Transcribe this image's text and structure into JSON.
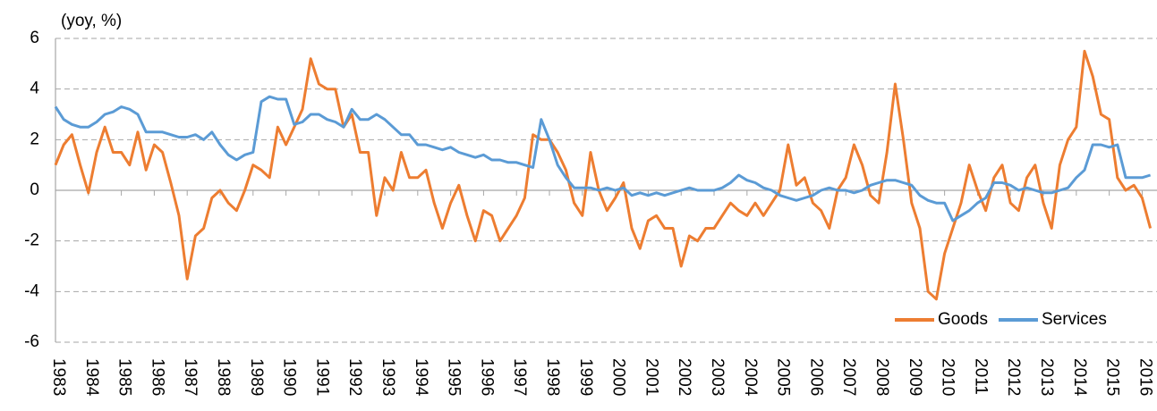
{
  "chart_data": {
    "type": "line",
    "y_label": "(yoy, %)",
    "x": [
      1983,
      1983.25,
      1983.5,
      1983.75,
      1984,
      1984.25,
      1984.5,
      1984.75,
      1985,
      1985.25,
      1985.5,
      1985.75,
      1986,
      1986.25,
      1986.5,
      1986.75,
      1987,
      1987.25,
      1987.5,
      1987.75,
      1988,
      1988.25,
      1988.5,
      1988.75,
      1989,
      1989.25,
      1989.5,
      1989.75,
      1990,
      1990.25,
      1990.5,
      1990.75,
      1991,
      1991.25,
      1991.5,
      1991.75,
      1992,
      1992.25,
      1992.5,
      1992.75,
      1993,
      1993.25,
      1993.5,
      1993.75,
      1994,
      1994.25,
      1994.5,
      1994.75,
      1995,
      1995.25,
      1995.5,
      1995.75,
      1996,
      1996.25,
      1996.5,
      1996.75,
      1997,
      1997.25,
      1997.5,
      1997.75,
      1998,
      1998.25,
      1998.5,
      1998.75,
      1999,
      1999.25,
      1999.5,
      1999.75,
      2000,
      2000.25,
      2000.5,
      2000.75,
      2001,
      2001.25,
      2001.5,
      2001.75,
      2002,
      2002.25,
      2002.5,
      2002.75,
      2003,
      2003.25,
      2003.5,
      2003.75,
      2004,
      2004.25,
      2004.5,
      2004.75,
      2005,
      2005.25,
      2005.5,
      2005.75,
      2006,
      2006.25,
      2006.5,
      2006.75,
      2007,
      2007.25,
      2007.5,
      2007.75,
      2008,
      2008.25,
      2008.5,
      2008.75,
      2009,
      2009.25,
      2009.5,
      2009.75,
      2010,
      2010.25,
      2010.5,
      2010.75,
      2011,
      2011.25,
      2011.5,
      2011.75,
      2012,
      2012.25,
      2012.5,
      2012.75,
      2013,
      2013.25,
      2013.5,
      2013.75,
      2014,
      2014.25,
      2014.5,
      2014.75,
      2015,
      2015.25,
      2015.5,
      2015.75,
      2016,
      2016.25
    ],
    "series": [
      {
        "name": "Goods",
        "color": "#ed7d31",
        "values": [
          1.0,
          1.8,
          2.2,
          1.0,
          -0.1,
          1.5,
          2.5,
          1.5,
          1.5,
          1.0,
          2.3,
          0.8,
          1.8,
          1.5,
          0.3,
          -1.0,
          -3.5,
          -1.8,
          -1.5,
          -0.3,
          0.0,
          -0.5,
          -0.8,
          0.0,
          1.0,
          0.8,
          0.5,
          2.5,
          1.8,
          2.5,
          3.2,
          5.2,
          4.2,
          4.0,
          4.0,
          2.5,
          3.0,
          1.5,
          1.5,
          -1.0,
          0.5,
          0.0,
          1.5,
          0.5,
          0.5,
          0.8,
          -0.5,
          -1.5,
          -0.5,
          0.2,
          -1.0,
          -2.0,
          -0.8,
          -1.0,
          -2.0,
          -1.5,
          -1.0,
          -0.3,
          2.2,
          2.0,
          2.0,
          1.5,
          0.8,
          -0.5,
          -1.0,
          1.5,
          0.0,
          -0.8,
          -0.3,
          0.3,
          -1.5,
          -2.3,
          -1.2,
          -1.0,
          -1.5,
          -1.5,
          -3.0,
          -1.8,
          -2.0,
          -1.5,
          -1.5,
          -1.0,
          -0.5,
          -0.8,
          -1.0,
          -0.5,
          -1.0,
          -0.5,
          0.0,
          1.8,
          0.2,
          0.5,
          -0.5,
          -0.8,
          -1.5,
          0.0,
          0.5,
          1.8,
          1.0,
          -0.2,
          -0.5,
          1.5,
          4.2,
          2.0,
          -0.5,
          -1.5,
          -4.0,
          -4.3,
          -2.5,
          -1.5,
          -0.5,
          1.0,
          0.0,
          -0.8,
          0.5,
          1.0,
          -0.5,
          -0.8,
          0.5,
          1.0,
          -0.5,
          -1.5,
          1.0,
          2.0,
          2.5,
          5.5,
          4.5,
          3.0,
          2.8,
          0.5,
          0.0,
          0.2,
          -0.3,
          -1.5
        ]
      },
      {
        "name": "Services",
        "color": "#5b9bd5",
        "values": [
          3.3,
          2.8,
          2.6,
          2.5,
          2.5,
          2.7,
          3.0,
          3.1,
          3.3,
          3.2,
          3.0,
          2.3,
          2.3,
          2.3,
          2.2,
          2.1,
          2.1,
          2.2,
          2.0,
          2.3,
          1.8,
          1.4,
          1.2,
          1.4,
          1.5,
          3.5,
          3.7,
          3.6,
          3.6,
          2.6,
          2.7,
          3.0,
          3.0,
          2.8,
          2.7,
          2.5,
          3.2,
          2.8,
          2.8,
          3.0,
          2.8,
          2.5,
          2.2,
          2.2,
          1.8,
          1.8,
          1.7,
          1.6,
          1.7,
          1.5,
          1.4,
          1.3,
          1.4,
          1.2,
          1.2,
          1.1,
          1.1,
          1.0,
          0.9,
          2.8,
          2.0,
          1.0,
          0.5,
          0.1,
          0.1,
          0.1,
          0.0,
          0.1,
          0.0,
          0.1,
          -0.2,
          -0.1,
          -0.2,
          -0.1,
          -0.2,
          -0.1,
          0.0,
          0.1,
          0.0,
          0.0,
          0.0,
          0.1,
          0.3,
          0.6,
          0.4,
          0.3,
          0.1,
          0.0,
          -0.2,
          -0.3,
          -0.4,
          -0.3,
          -0.2,
          0.0,
          0.1,
          0.0,
          0.0,
          -0.1,
          0.0,
          0.2,
          0.3,
          0.4,
          0.4,
          0.3,
          0.2,
          -0.2,
          -0.4,
          -0.5,
          -0.5,
          -1.2,
          -1.0,
          -0.8,
          -0.5,
          -0.3,
          0.3,
          0.3,
          0.2,
          0.0,
          0.1,
          0.0,
          -0.1,
          -0.1,
          0.0,
          0.1,
          0.5,
          0.8,
          1.8,
          1.8,
          1.7,
          1.8,
          0.5,
          0.5,
          0.5,
          0.6
        ]
      }
    ],
    "xlim": [
      1983,
      2016.45
    ],
    "xticks": [
      1983,
      1984,
      1985,
      1986,
      1987,
      1988,
      1989,
      1990,
      1991,
      1992,
      1993,
      1994,
      1995,
      1996,
      1997,
      1998,
      1999,
      2000,
      2001,
      2002,
      2003,
      2004,
      2005,
      2006,
      2007,
      2008,
      2009,
      2010,
      2011,
      2012,
      2013,
      2014,
      2015,
      2016
    ],
    "ylim": [
      -6,
      6
    ],
    "yticks": [
      -6,
      -4,
      -2,
      0,
      2,
      4,
      6
    ],
    "grid": true,
    "legend": "lower right"
  }
}
